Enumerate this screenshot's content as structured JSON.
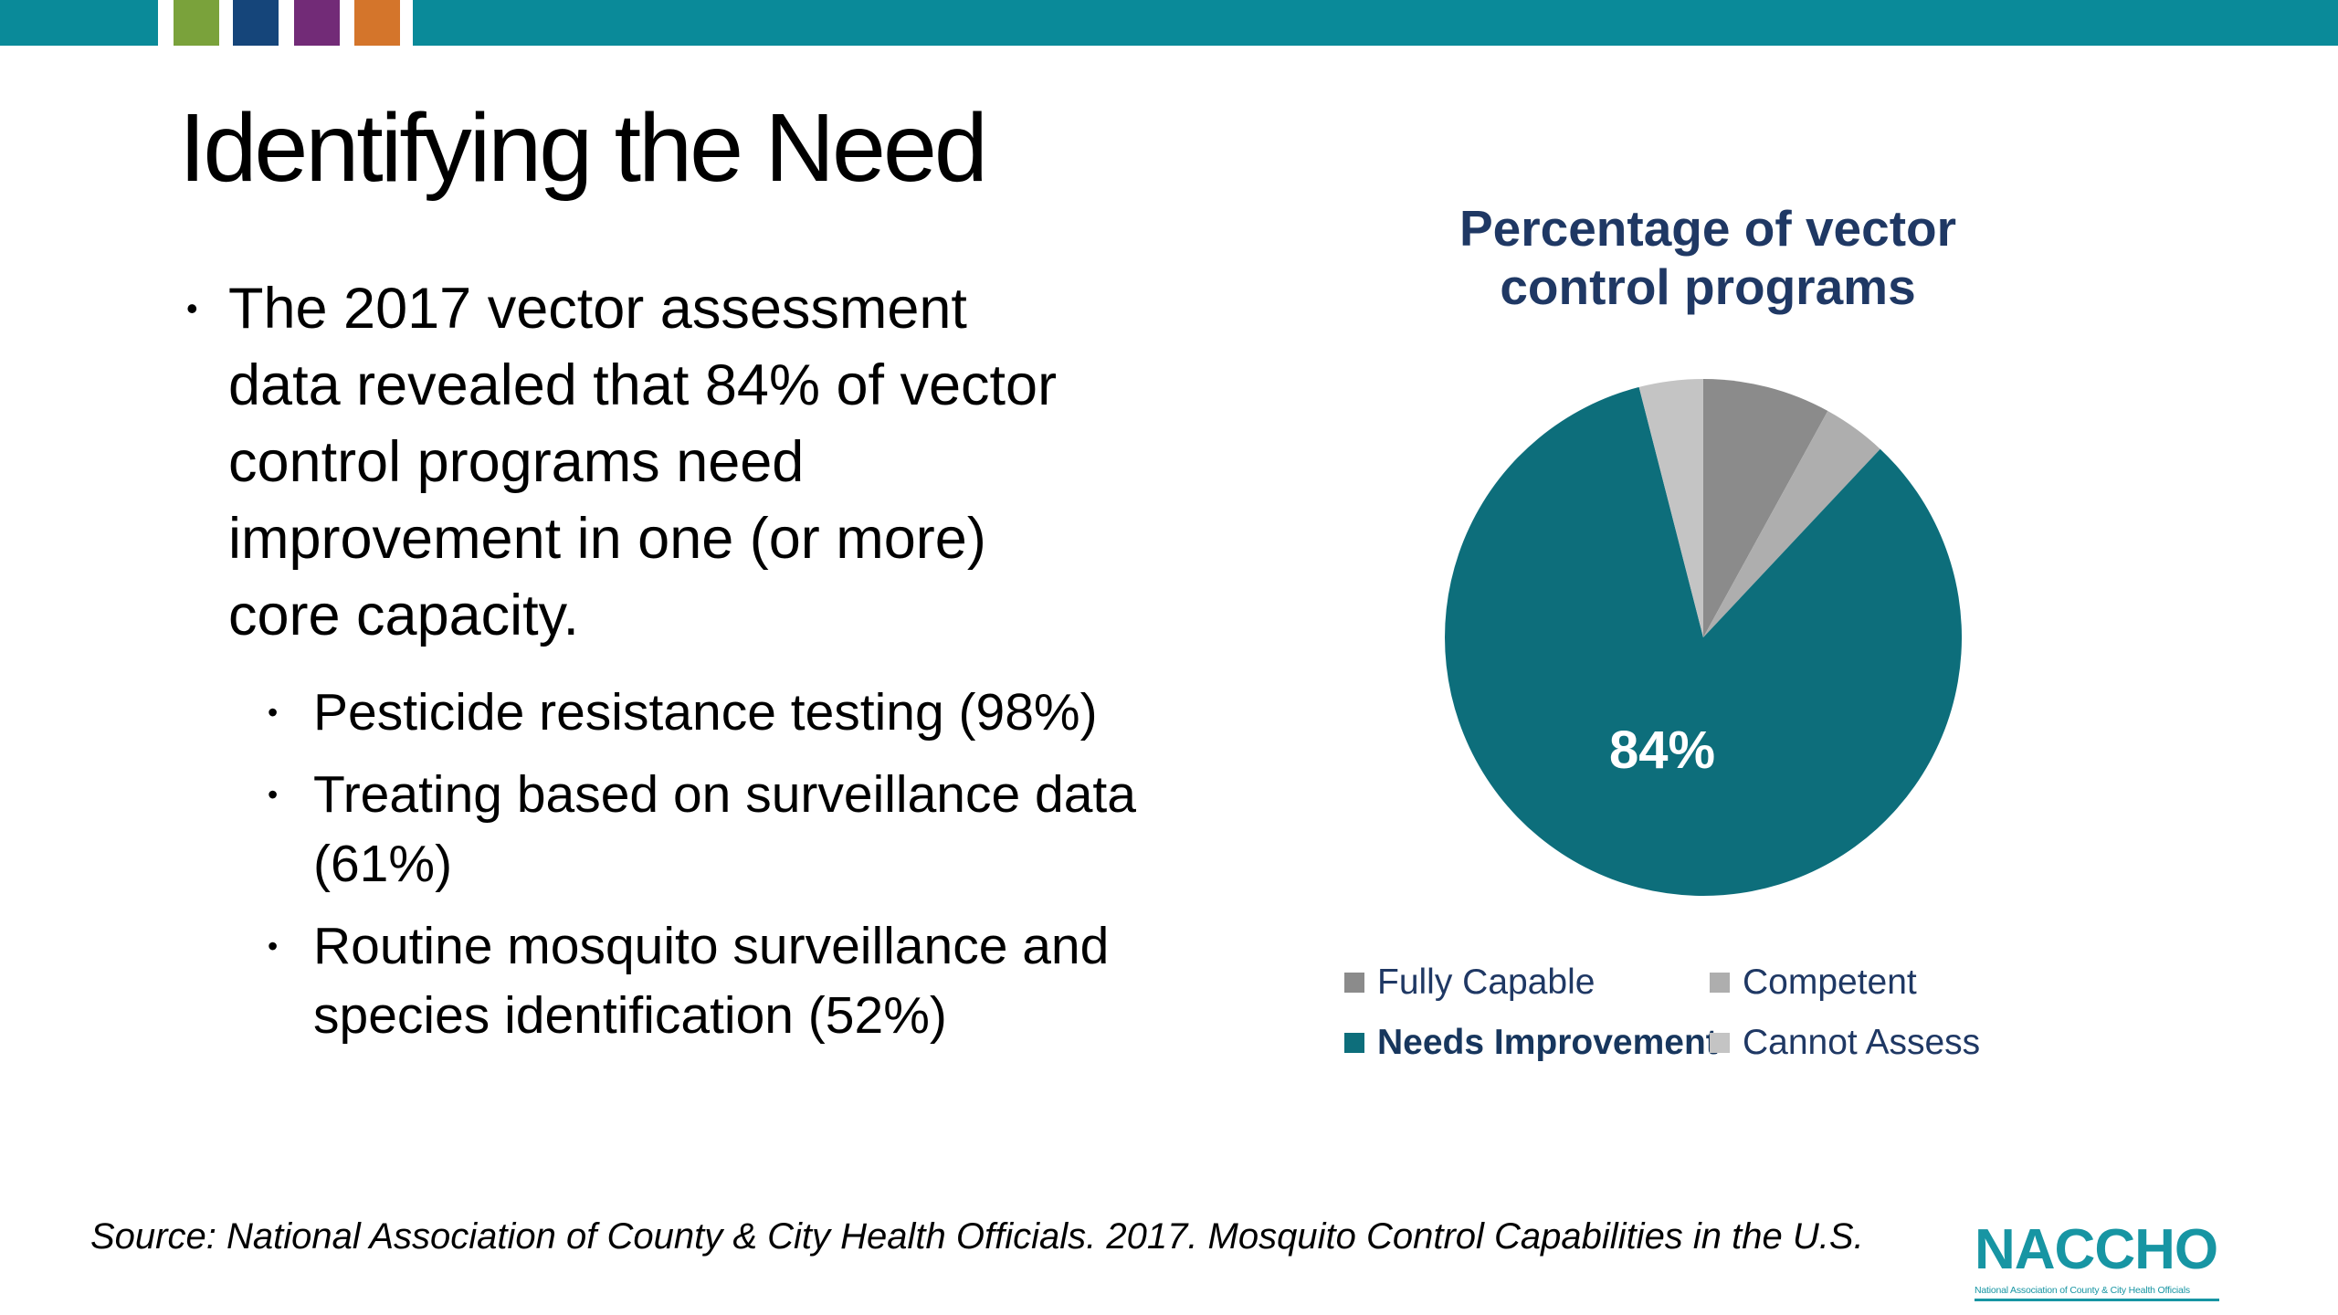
{
  "title": "Identifying the Need",
  "left": {
    "bullets": [
      {
        "level": 1,
        "lines": [
          "The 2017 vector assessment",
          "data revealed that 84% of vector",
          "control programs need",
          "improvement in one (or more)",
          "core capacity."
        ]
      },
      {
        "level": 2,
        "lines": [
          "Pesticide resistance testing (98%)"
        ]
      },
      {
        "level": 2,
        "lines": [
          "Treating based on surveillance data",
          "(61%)"
        ]
      },
      {
        "level": 2,
        "lines": [
          "Routine mosquito surveillance and",
          "species identification (52%)"
        ]
      }
    ]
  },
  "chart_data": {
    "type": "pie",
    "title": "Percentage of vector control programs",
    "title_lines": [
      "Percentage of vector",
      "control programs"
    ],
    "categories": [
      "Fully Capable",
      "Competent",
      "Needs Improvement",
      "Cannot Assess"
    ],
    "values": [
      8,
      4,
      84,
      4
    ],
    "colors": [
      "#8B8B8B",
      "#AEAEAE",
      "#0D6E7B",
      "#C4C4C4"
    ],
    "start_angle_deg": 0,
    "direction": "clockwise",
    "data_label": "84%",
    "data_label_series": "Needs Improvement",
    "legend_position": "bottom",
    "legend_bold": "Needs Improvement"
  },
  "footer": {
    "source": "Source: National Association of County & City Health Officials. 2017. Mosquito Control Capabilities in the U.S.",
    "logo": {
      "text": "NACCHO",
      "tagline": "National Association of County & City Health Officials"
    }
  },
  "theme": {
    "bar_teal": "#0A8A99",
    "accent_green": "#7AA23B",
    "accent_navy": "#15457A",
    "accent_purple": "#722B77",
    "accent_orange": "#D4752B",
    "chart_title_color": "#1F3864",
    "pie_teal": "#0D6E7B",
    "logo_teal": "#1795A3"
  }
}
